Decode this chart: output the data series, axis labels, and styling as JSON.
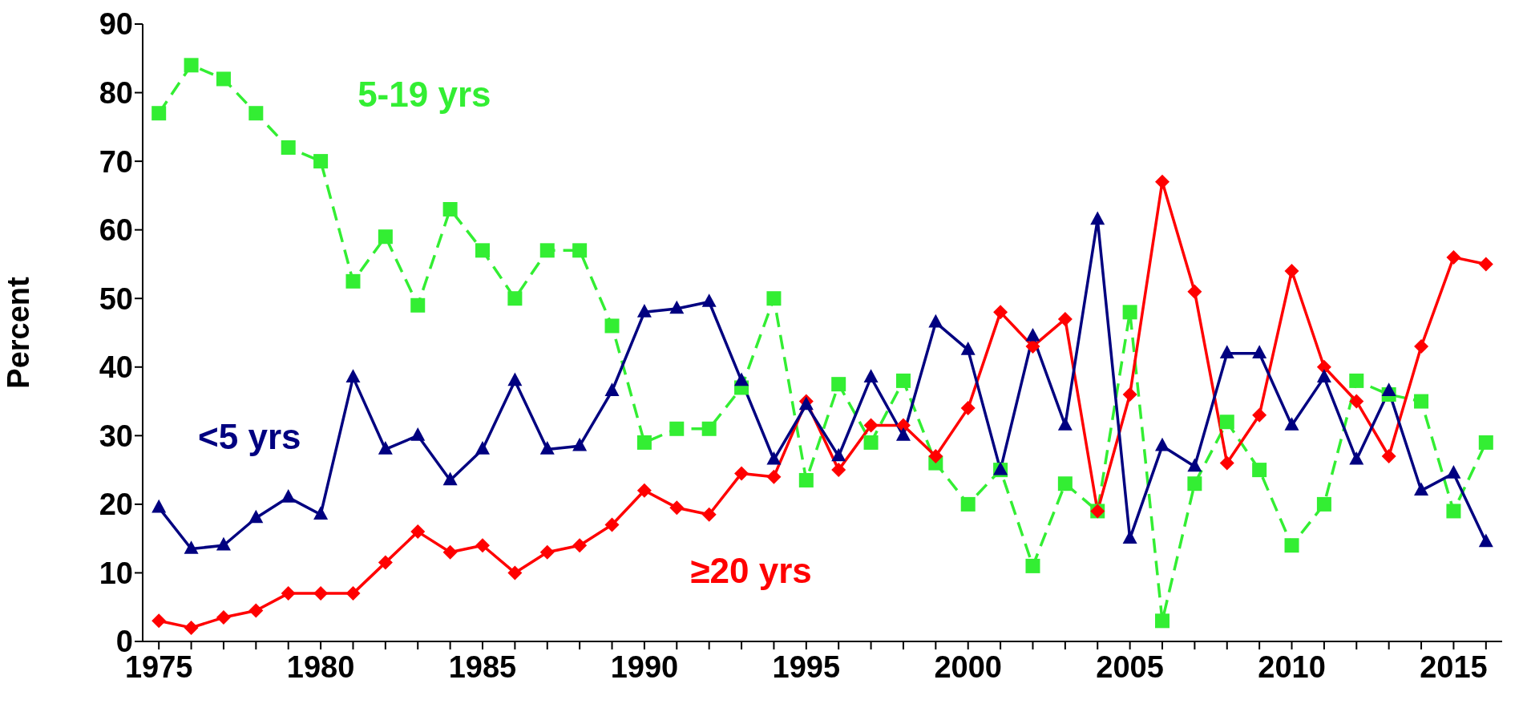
{
  "chart_data": {
    "type": "line",
    "ylabel": "Percent",
    "x": [
      1975,
      1976,
      1977,
      1978,
      1979,
      1980,
      1981,
      1982,
      1983,
      1984,
      1985,
      1986,
      1987,
      1988,
      1989,
      1990,
      1991,
      1992,
      1993,
      1994,
      1995,
      1996,
      1997,
      1998,
      1999,
      2000,
      2001,
      2002,
      2003,
      2004,
      2005,
      2006,
      2007,
      2008,
      2009,
      2010,
      2011,
      2012,
      2013,
      2014,
      2015,
      2016
    ],
    "series": [
      {
        "name": "<5 yrs",
        "color": "#000080",
        "marker": "triangle",
        "line_style": "solid",
        "values": [
          19.5,
          13.5,
          14,
          18,
          21,
          18.5,
          38.5,
          28,
          30,
          23.5,
          28,
          38,
          28,
          28.5,
          36.5,
          48,
          48.5,
          49.5,
          38,
          26.5,
          34.5,
          27,
          38.5,
          30,
          46.5,
          42.5,
          25,
          44.5,
          31.5,
          61.5,
          15,
          28.5,
          25.5,
          42,
          42,
          31.5,
          38.5,
          26.5,
          36.5,
          22,
          24.5,
          14.5
        ]
      },
      {
        "name": "5-19 yrs",
        "color": "#33ee33",
        "marker": "square",
        "line_style": "dashed",
        "values": [
          77,
          84,
          82,
          77,
          72,
          70,
          52.5,
          59,
          49,
          63,
          57,
          50,
          57,
          57,
          46,
          29,
          31,
          31,
          37,
          50,
          23.5,
          37.5,
          29,
          38,
          26,
          20,
          25,
          11,
          23,
          19,
          48,
          3,
          23,
          32,
          25,
          14,
          20,
          38,
          36,
          35,
          19,
          29
        ]
      },
      {
        "name": "≥20 yrs",
        "color": "#ff0000",
        "marker": "diamond",
        "line_style": "solid",
        "values": [
          3,
          2,
          3.5,
          4.5,
          7,
          7,
          7,
          11.5,
          16,
          13,
          14,
          10,
          13,
          14,
          17,
          22,
          19.5,
          18.5,
          24.5,
          24,
          35,
          25,
          31.5,
          31.5,
          27,
          34,
          48,
          43,
          47,
          19,
          36,
          67,
          51,
          26,
          33,
          54,
          40,
          35,
          27,
          43,
          56,
          55
        ]
      }
    ],
    "xlim": [
      1974.5,
      2016.5
    ],
    "xticks": [
      1975,
      {
        "value": 1976,
        "label": null
      },
      {
        "value": 1977,
        "label": null
      },
      {
        "value": 1978,
        "label": null
      },
      {
        "value": 1979,
        "label": null
      },
      1980,
      {
        "value": 1981,
        "label": null
      },
      {
        "value": 1982,
        "label": null
      },
      {
        "value": 1983,
        "label": null
      },
      {
        "value": 1984,
        "label": null
      },
      1985,
      {
        "value": 1986,
        "label": null
      },
      {
        "value": 1987,
        "label": null
      },
      {
        "value": 1988,
        "label": null
      },
      {
        "value": 1989,
        "label": null
      },
      1990,
      {
        "value": 1991,
        "label": null
      },
      {
        "value": 1992,
        "label": null
      },
      {
        "value": 1993,
        "label": null
      },
      {
        "value": 1994,
        "label": null
      },
      1995,
      {
        "value": 1996,
        "label": null
      },
      {
        "value": 1997,
        "label": null
      },
      {
        "value": 1998,
        "label": null
      },
      {
        "value": 1999,
        "label": null
      },
      2000,
      {
        "value": 2001,
        "label": null
      },
      {
        "value": 2002,
        "label": null
      },
      {
        "value": 2003,
        "label": null
      },
      {
        "value": 2004,
        "label": null
      },
      2005,
      {
        "value": 2006,
        "label": null
      },
      {
        "value": 2007,
        "label": null
      },
      {
        "value": 2008,
        "label": null
      },
      {
        "value": 2009,
        "label": null
      },
      2010,
      {
        "value": 2011,
        "label": null
      },
      {
        "value": 2012,
        "label": null
      },
      {
        "value": 2013,
        "label": null
      },
      {
        "value": 2014,
        "label": null
      },
      2015,
      {
        "value": 2016,
        "label": null
      }
    ],
    "ylim": [
      0,
      90
    ],
    "yticks": [
      0,
      10,
      20,
      30,
      40,
      50,
      60,
      70,
      80,
      90
    ],
    "grid": false,
    "legend": false
  }
}
